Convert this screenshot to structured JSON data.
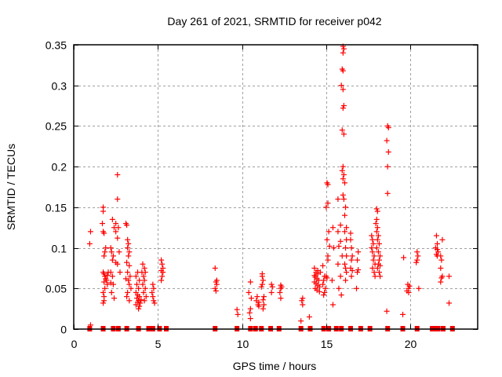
{
  "chart_data": {
    "type": "scatter",
    "title": "Day 261 of 2021, SRMTID for receiver p042",
    "xlabel": "GPS time / hours",
    "ylabel": "SRMTID / TECUs",
    "xlim": [
      0,
      24
    ],
    "ylim": [
      0,
      0.35
    ],
    "xticks": [
      0,
      5,
      10,
      15,
      20
    ],
    "xtick_labels": [
      "0",
      "5",
      "10",
      "15",
      "20"
    ],
    "yticks": [
      0,
      0.05,
      0.1,
      0.15,
      0.2,
      0.25,
      0.3,
      0.35
    ],
    "ytick_labels": [
      "0",
      "0.05",
      "0.1",
      "0.15",
      "0.2",
      "0.25",
      "0.3",
      "0.35"
    ],
    "grid": true,
    "legend": "none",
    "marker_color": "#ff0000",
    "series": [
      {
        "name": "SRMTID",
        "marker": "plus",
        "points": [
          [
            1.0,
            0.12
          ],
          [
            0.95,
            0.105
          ],
          [
            1.0,
            0.005
          ],
          [
            1.75,
            0.15
          ],
          [
            1.75,
            0.145
          ],
          [
            1.7,
            0.13
          ],
          [
            1.75,
            0.12
          ],
          [
            1.8,
            0.118
          ],
          [
            1.9,
            0.1
          ],
          [
            1.85,
            0.095
          ],
          [
            1.8,
            0.09
          ],
          [
            1.75,
            0.07
          ],
          [
            1.8,
            0.068
          ],
          [
            1.85,
            0.065
          ],
          [
            1.9,
            0.062
          ],
          [
            1.95,
            0.06
          ],
          [
            1.8,
            0.058
          ],
          [
            2.0,
            0.055
          ],
          [
            1.85,
            0.05
          ],
          [
            1.75,
            0.045
          ],
          [
            1.8,
            0.04
          ],
          [
            1.8,
            0.035
          ],
          [
            1.75,
            0.032
          ],
          [
            2.05,
            0.07
          ],
          [
            2.0,
            0.066
          ],
          [
            2.3,
            0.135
          ],
          [
            2.4,
            0.125
          ],
          [
            2.5,
            0.12
          ],
          [
            2.2,
            0.1
          ],
          [
            2.25,
            0.095
          ],
          [
            2.35,
            0.09
          ],
          [
            2.3,
            0.085
          ],
          [
            2.5,
            0.082
          ],
          [
            2.2,
            0.07
          ],
          [
            2.3,
            0.065
          ],
          [
            2.2,
            0.057
          ],
          [
            2.35,
            0.055
          ],
          [
            2.25,
            0.045
          ],
          [
            2.4,
            0.038
          ],
          [
            2.6,
            0.19
          ],
          [
            2.6,
            0.16
          ],
          [
            2.5,
            0.13
          ],
          [
            2.65,
            0.125
          ],
          [
            2.6,
            0.112
          ],
          [
            2.7,
            0.095
          ],
          [
            2.6,
            0.08
          ],
          [
            2.75,
            0.07
          ],
          [
            3.1,
            0.13
          ],
          [
            3.15,
            0.128
          ],
          [
            3.2,
            0.11
          ],
          [
            3.25,
            0.105
          ],
          [
            3.2,
            0.1
          ],
          [
            3.3,
            0.095
          ],
          [
            3.25,
            0.09
          ],
          [
            3.15,
            0.082
          ],
          [
            3.3,
            0.078
          ],
          [
            3.2,
            0.07
          ],
          [
            3.35,
            0.065
          ],
          [
            3.1,
            0.062
          ],
          [
            3.25,
            0.06
          ],
          [
            3.3,
            0.055
          ],
          [
            3.4,
            0.05
          ],
          [
            3.2,
            0.045
          ],
          [
            3.15,
            0.04
          ],
          [
            3.3,
            0.035
          ],
          [
            3.8,
            0.07
          ],
          [
            3.7,
            0.065
          ],
          [
            3.9,
            0.06
          ],
          [
            3.75,
            0.055
          ],
          [
            3.85,
            0.05
          ],
          [
            3.7,
            0.045
          ],
          [
            3.8,
            0.042
          ],
          [
            3.9,
            0.04
          ],
          [
            3.75,
            0.038
          ],
          [
            3.85,
            0.035
          ],
          [
            3.8,
            0.033
          ],
          [
            3.7,
            0.03
          ],
          [
            3.9,
            0.028
          ],
          [
            3.85,
            0.025
          ],
          [
            3.95,
            0.032
          ],
          [
            4.0,
            0.036
          ],
          [
            4.1,
            0.08
          ],
          [
            4.2,
            0.075
          ],
          [
            4.05,
            0.07
          ],
          [
            4.15,
            0.065
          ],
          [
            4.2,
            0.06
          ],
          [
            4.1,
            0.055
          ],
          [
            4.25,
            0.05
          ],
          [
            4.15,
            0.045
          ],
          [
            4.3,
            0.04
          ],
          [
            4.2,
            0.035
          ],
          [
            4.25,
            0.07
          ],
          [
            4.7,
            0.055
          ],
          [
            4.75,
            0.05
          ],
          [
            4.65,
            0.045
          ],
          [
            4.7,
            0.04
          ],
          [
            4.75,
            0.035
          ],
          [
            4.8,
            0.032
          ],
          [
            5.2,
            0.085
          ],
          [
            5.25,
            0.08
          ],
          [
            5.3,
            0.075
          ],
          [
            5.2,
            0.072
          ],
          [
            5.3,
            0.07
          ],
          [
            5.25,
            0.065
          ],
          [
            5.2,
            0.06
          ],
          [
            8.4,
            0.075
          ],
          [
            8.5,
            0.06
          ],
          [
            8.45,
            0.058
          ],
          [
            8.5,
            0.055
          ],
          [
            8.4,
            0.05
          ],
          [
            8.45,
            0.047
          ],
          [
            9.7,
            0.024
          ],
          [
            9.75,
            0.018
          ],
          [
            10.5,
            0.058
          ],
          [
            10.4,
            0.045
          ],
          [
            10.55,
            0.038
          ],
          [
            10.5,
            0.025
          ],
          [
            10.45,
            0.02
          ],
          [
            10.5,
            0.013
          ],
          [
            10.9,
            0.04
          ],
          [
            10.85,
            0.035
          ],
          [
            11.0,
            0.033
          ],
          [
            10.95,
            0.03
          ],
          [
            11.0,
            0.028
          ],
          [
            11.2,
            0.068
          ],
          [
            11.2,
            0.065
          ],
          [
            11.25,
            0.06
          ],
          [
            11.2,
            0.055
          ],
          [
            11.15,
            0.052
          ],
          [
            11.3,
            0.04
          ],
          [
            11.25,
            0.036
          ],
          [
            11.3,
            0.03
          ],
          [
            11.25,
            0.025
          ],
          [
            11.75,
            0.055
          ],
          [
            11.8,
            0.052
          ],
          [
            11.75,
            0.045
          ],
          [
            12.3,
            0.054
          ],
          [
            12.35,
            0.052
          ],
          [
            12.3,
            0.05
          ],
          [
            12.25,
            0.045
          ],
          [
            12.3,
            0.038
          ],
          [
            13.6,
            0.038
          ],
          [
            13.55,
            0.035
          ],
          [
            13.6,
            0.03
          ],
          [
            13.5,
            0.01
          ],
          [
            14.0,
            0.015
          ],
          [
            14.3,
            0.075
          ],
          [
            14.4,
            0.07
          ],
          [
            14.5,
            0.068
          ],
          [
            14.3,
            0.066
          ],
          [
            14.35,
            0.064
          ],
          [
            14.45,
            0.062
          ],
          [
            14.55,
            0.06
          ],
          [
            14.3,
            0.058
          ],
          [
            14.4,
            0.056
          ],
          [
            14.5,
            0.054
          ],
          [
            14.6,
            0.052
          ],
          [
            14.35,
            0.05
          ],
          [
            14.45,
            0.048
          ],
          [
            14.6,
            0.046
          ],
          [
            14.5,
            0.072
          ],
          [
            14.65,
            0.07
          ],
          [
            14.8,
            0.078
          ],
          [
            14.9,
            0.065
          ],
          [
            14.85,
            0.06
          ],
          [
            14.8,
            0.055
          ],
          [
            14.95,
            0.05
          ],
          [
            14.9,
            0.045
          ],
          [
            14.85,
            0.042
          ],
          [
            15.05,
            0.18
          ],
          [
            15.1,
            0.178
          ],
          [
            15.1,
            0.155
          ],
          [
            15.0,
            0.15
          ],
          [
            15.15,
            0.12
          ],
          [
            15.05,
            0.11
          ],
          [
            15.2,
            0.102
          ],
          [
            15.1,
            0.09
          ],
          [
            15.1,
            0.085
          ],
          [
            15.0,
            0.065
          ],
          [
            15.05,
            0.063
          ],
          [
            15.4,
            0.125
          ],
          [
            15.45,
            0.1
          ],
          [
            15.35,
            0.06
          ],
          [
            15.4,
            0.03
          ],
          [
            15.7,
            0.16
          ],
          [
            15.85,
            0.128
          ],
          [
            15.7,
            0.12
          ],
          [
            15.85,
            0.108
          ],
          [
            15.75,
            0.102
          ],
          [
            15.95,
            0.09
          ],
          [
            15.7,
            0.08
          ],
          [
            15.85,
            0.065
          ],
          [
            15.75,
            0.05
          ],
          [
            15.9,
            0.042
          ],
          [
            16.0,
            0.348
          ],
          [
            16.05,
            0.345
          ],
          [
            16.0,
            0.34
          ],
          [
            15.95,
            0.32
          ],
          [
            16.0,
            0.318
          ],
          [
            15.9,
            0.3
          ],
          [
            16.0,
            0.295
          ],
          [
            16.05,
            0.275
          ],
          [
            16.0,
            0.272
          ],
          [
            15.95,
            0.245
          ],
          [
            16.05,
            0.24
          ],
          [
            16.0,
            0.2
          ],
          [
            15.95,
            0.195
          ],
          [
            16.05,
            0.19
          ],
          [
            16.0,
            0.185
          ],
          [
            16.1,
            0.18
          ],
          [
            16.0,
            0.165
          ],
          [
            16.05,
            0.16
          ],
          [
            16.15,
            0.15
          ],
          [
            16.1,
            0.14
          ],
          [
            16.2,
            0.125
          ],
          [
            16.1,
            0.12
          ],
          [
            16.2,
            0.11
          ],
          [
            16.15,
            0.1
          ],
          [
            16.2,
            0.09
          ],
          [
            16.1,
            0.08
          ],
          [
            16.15,
            0.075
          ],
          [
            16.2,
            0.07
          ],
          [
            16.15,
            0.06
          ],
          [
            16.45,
            0.118
          ],
          [
            16.45,
            0.11
          ],
          [
            16.5,
            0.1
          ],
          [
            16.55,
            0.09
          ],
          [
            16.5,
            0.085
          ],
          [
            16.45,
            0.075
          ],
          [
            16.55,
            0.072
          ],
          [
            16.5,
            0.065
          ],
          [
            16.9,
            0.095
          ],
          [
            16.85,
            0.085
          ],
          [
            16.9,
            0.073
          ],
          [
            16.85,
            0.07
          ],
          [
            16.8,
            0.05
          ],
          [
            17.7,
            0.115
          ],
          [
            17.75,
            0.11
          ],
          [
            17.8,
            0.105
          ],
          [
            17.7,
            0.1
          ],
          [
            17.75,
            0.095
          ],
          [
            17.85,
            0.09
          ],
          [
            17.8,
            0.085
          ],
          [
            17.9,
            0.08
          ],
          [
            17.75,
            0.075
          ],
          [
            17.85,
            0.07
          ],
          [
            17.9,
            0.065
          ],
          [
            18.0,
            0.148
          ],
          [
            18.05,
            0.145
          ],
          [
            18.0,
            0.135
          ],
          [
            17.95,
            0.13
          ],
          [
            18.05,
            0.125
          ],
          [
            18.0,
            0.12
          ],
          [
            18.1,
            0.115
          ],
          [
            18.05,
            0.11
          ],
          [
            18.15,
            0.105
          ],
          [
            18.0,
            0.1
          ],
          [
            18.1,
            0.095
          ],
          [
            18.2,
            0.09
          ],
          [
            18.15,
            0.085
          ],
          [
            18.1,
            0.08
          ],
          [
            18.2,
            0.078
          ],
          [
            18.05,
            0.075
          ],
          [
            18.15,
            0.07
          ],
          [
            18.2,
            0.065
          ],
          [
            18.65,
            0.25
          ],
          [
            18.7,
            0.248
          ],
          [
            18.6,
            0.232
          ],
          [
            18.7,
            0.218
          ],
          [
            18.65,
            0.2
          ],
          [
            18.65,
            0.167
          ],
          [
            18.6,
            0.022
          ],
          [
            19.6,
            0.088
          ],
          [
            19.55,
            0.018
          ],
          [
            19.85,
            0.055
          ],
          [
            19.95,
            0.053
          ],
          [
            19.9,
            0.05
          ],
          [
            19.8,
            0.047
          ],
          [
            19.9,
            0.045
          ],
          [
            20.4,
            0.095
          ],
          [
            20.45,
            0.09
          ],
          [
            20.4,
            0.085
          ],
          [
            20.35,
            0.082
          ],
          [
            20.5,
            0.05
          ],
          [
            21.55,
            0.115
          ],
          [
            21.6,
            0.105
          ],
          [
            21.5,
            0.1
          ],
          [
            21.6,
            0.098
          ],
          [
            21.65,
            0.095
          ],
          [
            21.55,
            0.092
          ],
          [
            21.6,
            0.09
          ],
          [
            21.9,
            0.11
          ],
          [
            21.8,
            0.09
          ],
          [
            21.85,
            0.085
          ],
          [
            21.8,
            0.075
          ],
          [
            21.9,
            0.065
          ],
          [
            21.85,
            0.063
          ],
          [
            21.8,
            0.058
          ],
          [
            22.3,
            0.065
          ],
          [
            22.3,
            0.032
          ]
        ]
      },
      {
        "name": "zero-level markers",
        "marker": "filled-square",
        "x": [
          0.95,
          1.75,
          2.35,
          2.65,
          3.15,
          3.85,
          4.45,
          4.7,
          5.1,
          5.5,
          8.4,
          9.7,
          10.5,
          10.8,
          11.15,
          11.7,
          12.2,
          13.5,
          14.05,
          14.85,
          15.15,
          15.6,
          15.9,
          16.45,
          17.05,
          17.6,
          18.65,
          19.55,
          20.4,
          21.3,
          21.45,
          21.55,
          21.65,
          21.95,
          22.5
        ],
        "y": 0
      }
    ]
  }
}
